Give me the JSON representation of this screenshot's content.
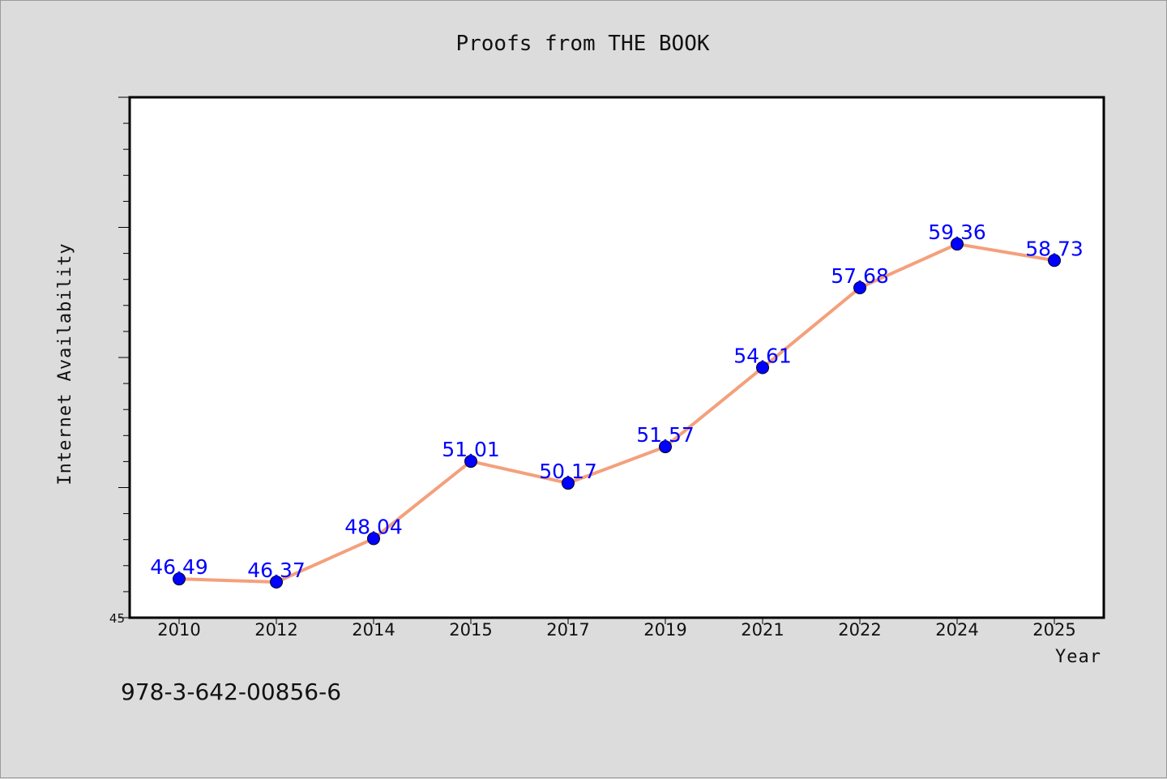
{
  "chart_data": {
    "type": "line",
    "title": "Proofs from THE BOOK",
    "xlabel": "Year",
    "ylabel": "Internet Availability",
    "categories": [
      "2010",
      "2012",
      "2014",
      "2015",
      "2017",
      "2019",
      "2021",
      "2022",
      "2024",
      "2025"
    ],
    "series": [
      {
        "values": [
          46.49,
          46.37,
          48.04,
          51.01,
          50.17,
          51.57,
          54.61,
          57.68,
          59.36,
          58.73
        ]
      }
    ],
    "data_labels": [
      "46.49",
      "46.37",
      "48.04",
      "51.01",
      "50.17",
      "51.57",
      "54.61",
      "57.68",
      "59.36",
      "58.73"
    ],
    "ylim": [
      45,
      65
    ],
    "yticks_labeled": [
      "45"
    ],
    "grid": false,
    "colors": {
      "line": "#f4a07c",
      "marker": "#0000ff",
      "label": "#0000ff",
      "background": "#dcdcdc",
      "plot_bg": "#ffffff"
    }
  },
  "footer": {
    "isbn": "978-3-642-00856-6"
  }
}
